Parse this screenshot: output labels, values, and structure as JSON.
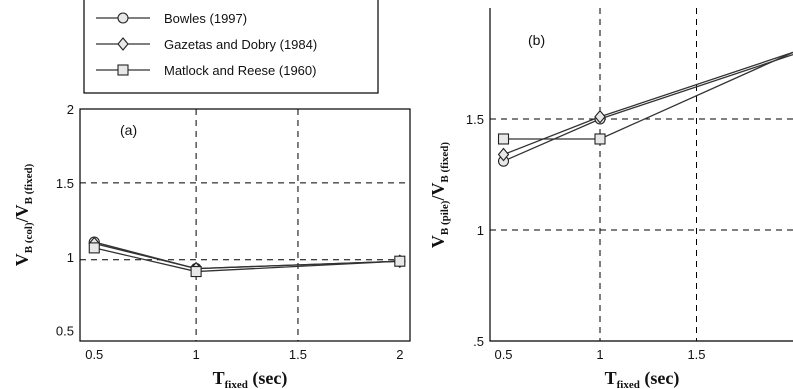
{
  "chart_data": [
    {
      "type": "line",
      "panel_label": "(a)",
      "xlabel": {
        "main": "T",
        "sub": "fixed",
        "after": " (sec)"
      },
      "ylabel": {
        "V1": "V",
        "s1": "B (col)",
        "mid": "/V",
        "s2": "B (fixed)"
      },
      "xlim": [
        0.43,
        2.05
      ],
      "ylim": [
        0.43,
        2.0
      ],
      "xticks": [
        0.5,
        1,
        1.5,
        2
      ],
      "xtick_labels": [
        "0.5",
        "1",
        "1.5",
        "2"
      ],
      "yticks": [
        0.5,
        1,
        1.5,
        2
      ],
      "ytick_labels": [
        "0.5",
        "1",
        "1.5",
        "2"
      ],
      "grid_x": [
        1,
        1.5
      ],
      "grid_y": [
        0.98,
        1.5
      ],
      "grid": true,
      "series": [
        {
          "name": "Bowles (1997)",
          "marker": "circle",
          "x": [
            0.5,
            1,
            2
          ],
          "y": [
            1.1,
            0.92,
            0.97
          ]
        },
        {
          "name": "Gazetas and Dobry (1984)",
          "marker": "diamond",
          "x": [
            0.5,
            1,
            2
          ],
          "y": [
            1.09,
            0.92,
            0.97
          ]
        },
        {
          "name": "Matlock and Reese (1960)",
          "marker": "square",
          "x": [
            0.5,
            1,
            2
          ],
          "y": [
            1.06,
            0.9,
            0.97
          ]
        }
      ]
    },
    {
      "type": "line",
      "panel_label": "(b)",
      "xlabel": {
        "main": "T",
        "sub": "fixed",
        "after": " (sec)"
      },
      "ylabel": {
        "V1": "V",
        "s1": "B (pile)",
        "mid": "/V",
        "s2": "B (fixed)"
      },
      "xlim": [
        0.43,
        2.0
      ],
      "ylim": [
        0.5,
        2.0
      ],
      "xticks": [
        0.5,
        1,
        1.5
      ],
      "xtick_labels": [
        "0.5",
        "1",
        "1.5"
      ],
      "yticks": [
        0.5,
        1,
        1.5
      ],
      "ytick_labels": [
        ".5",
        "1",
        "1.5"
      ],
      "grid_x": [
        1,
        1.5
      ],
      "grid_y": [
        1,
        1.5
      ],
      "grid": true,
      "series": [
        {
          "name": "Bowles (1997)",
          "marker": "circle",
          "x": [
            0.5,
            1,
            2
          ],
          "y": [
            1.31,
            1.5,
            1.79
          ]
        },
        {
          "name": "Gazetas and Dobry (1984)",
          "marker": "diamond",
          "x": [
            0.5,
            1,
            2
          ],
          "y": [
            1.34,
            1.51,
            1.8
          ]
        },
        {
          "name": "Matlock and Reese (1960)",
          "marker": "square",
          "x": [
            0.5,
            1,
            2
          ],
          "y": [
            1.41,
            1.41,
            1.8
          ]
        }
      ]
    }
  ],
  "legend": {
    "placement": "top-left",
    "entries": [
      {
        "label": "Bowles (1997)",
        "marker": "circle"
      },
      {
        "label": "Gazetas and Dobry (1984)",
        "marker": "diamond"
      },
      {
        "label": "Matlock and Reese (1960)",
        "marker": "square"
      }
    ]
  }
}
